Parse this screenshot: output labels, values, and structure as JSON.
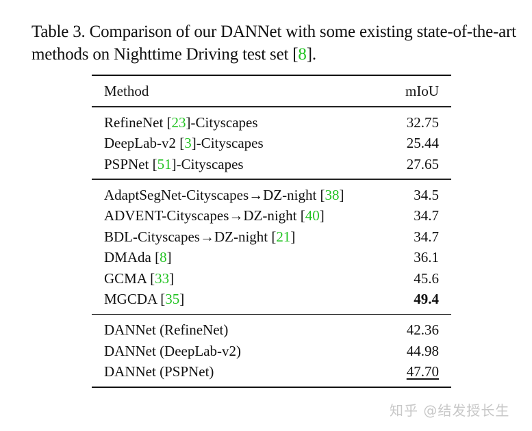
{
  "caption": {
    "prefix": "Table 3. Comparison of our DANNet with some existing state-of-the-art methods on Nighttime Driving test set [",
    "cite": "8",
    "suffix": "]."
  },
  "table": {
    "headers": {
      "method": "Method",
      "metric": "mIoU"
    },
    "groups": [
      [
        {
          "name": "RefineNet [",
          "cite": "23",
          "after": "]-Cityscapes",
          "value": "32.75"
        },
        {
          "name": "DeepLab-v2 [",
          "cite": "3",
          "after": "]-Cityscapes",
          "value": "25.44"
        },
        {
          "name": "PSPNet [",
          "cite": "51",
          "after": "]-Cityscapes",
          "value": "27.65"
        }
      ],
      [
        {
          "name": "AdaptSegNet-Cityscapes→DZ-night [",
          "cite": "38",
          "after": "]",
          "value": "34.5"
        },
        {
          "name": "ADVENT-Cityscapes→DZ-night [",
          "cite": "40",
          "after": "]",
          "value": "34.7"
        },
        {
          "name": "BDL-Cityscapes→DZ-night [",
          "cite": "21",
          "after": "]",
          "value": "34.7"
        },
        {
          "name": "DMAda [",
          "cite": "8",
          "after": "]",
          "value": "36.1"
        },
        {
          "name": "GCMA [",
          "cite": "33",
          "after": "]",
          "value": "45.6"
        },
        {
          "name": "MGCDA [",
          "cite": "35",
          "after": "]",
          "value": "49.4",
          "style": "bold"
        }
      ],
      [
        {
          "name": "DANNet (RefineNet)",
          "cite": "",
          "after": "",
          "value": "42.36"
        },
        {
          "name": "DANNet (DeepLab-v2)",
          "cite": "",
          "after": "",
          "value": "44.98"
        },
        {
          "name": "DANNet (PSPNet)",
          "cite": "",
          "after": "",
          "value": "47.70",
          "style": "underline"
        }
      ]
    ]
  },
  "watermark": "知乎 @结发授长生",
  "colors": {
    "citation": "#22c322",
    "text": "#111111",
    "watermark": "#c8c8c8"
  }
}
